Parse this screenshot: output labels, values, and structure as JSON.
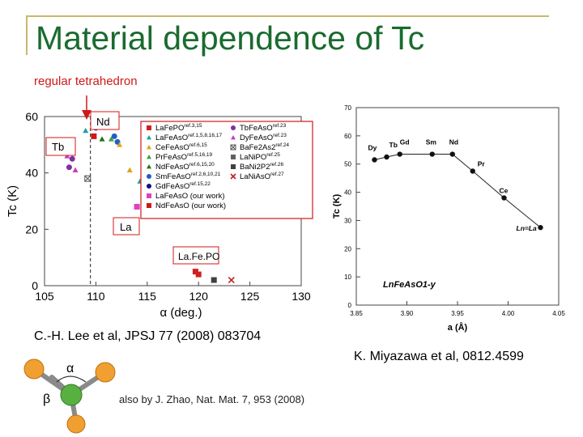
{
  "slide": {
    "title": "Material dependence of Tc",
    "subtitle": "regular tetrahedron",
    "ref_lee": "C.-H. Lee et al, JPSJ 77 (2008) 083704",
    "ref_miyazawa": "K. Miyazawa et al, 0812.4599",
    "ref_zhao": "also by J. Zhao, Nat. Mat. 7, 953 (2008)",
    "callouts": {
      "nd": "Nd",
      "tb": "Tb",
      "la": "La",
      "lafepo": "La.Fe.PO"
    },
    "colors": {
      "title": "#1a6b2f",
      "subtitle": "#d01818",
      "accent": "#d01818"
    }
  },
  "molecule": {
    "alpha": "α",
    "beta": "β"
  },
  "chart_data": [
    {
      "type": "scatter",
      "xlabel": "α (deg.)",
      "ylabel": "Tc (K)",
      "xlim": [
        105,
        130
      ],
      "ylim": [
        0,
        60
      ],
      "xticks": [
        105,
        110,
        115,
        120,
        125,
        130
      ],
      "yticks": [
        0,
        20,
        40,
        60
      ],
      "reference_x": 109.47,
      "legend": [
        {
          "label": "LaFePO",
          "ref": "ref.3,15",
          "color": "#d02020",
          "marker": "square"
        },
        {
          "label": "LaFeAsO",
          "ref": "ref.1,5,8,16,17",
          "color": "#20a0a0",
          "marker": "triangle"
        },
        {
          "label": "CeFeAsO",
          "ref": "ref.6,15",
          "color": "#e0a020",
          "marker": "triangle"
        },
        {
          "label": "PrFeAsO",
          "ref": "ref.5,16,19",
          "color": "#40a040",
          "marker": "triangle"
        },
        {
          "label": "NdFeAsO",
          "ref": "ref.6,15,20",
          "color": "#207020",
          "marker": "triangle"
        },
        {
          "label": "SmFeAsO",
          "ref": "ref.2,6,10,21",
          "color": "#2060c0",
          "marker": "circle"
        },
        {
          "label": "GdFeAsO",
          "ref": "ref.15,22",
          "color": "#101080",
          "marker": "circle"
        },
        {
          "label": "LaFeAsO (our work)",
          "ref": "",
          "color": "#e040c0",
          "marker": "square"
        },
        {
          "label": "NdFeAsO (our work)",
          "ref": "",
          "color": "#d01818",
          "marker": "square"
        },
        {
          "label": "TbFeAsO",
          "ref": "ref.23",
          "color": "#8030a0",
          "marker": "circle"
        },
        {
          "label": "DyFeAsO",
          "ref": "ref.23",
          "color": "#c040c0",
          "marker": "triangle"
        },
        {
          "label": "BaFe2As2",
          "ref": "ref.24",
          "color": "#555555",
          "marker": "x-square"
        },
        {
          "label": "LaNiPO",
          "ref": "ref.25",
          "color": "#606060",
          "marker": "square"
        },
        {
          "label": "BaNi2P2",
          "ref": "ref.26",
          "color": "#404040",
          "marker": "square"
        },
        {
          "label": "LaNiAsO",
          "ref": "ref.27",
          "color": "#c02020",
          "marker": "x"
        }
      ],
      "points": [
        {
          "x": 109.0,
          "y": 55,
          "color": "#20a0a0",
          "marker": "triangle"
        },
        {
          "x": 110.0,
          "y": 56,
          "color": "#101080",
          "marker": "circle"
        },
        {
          "x": 109.8,
          "y": 53,
          "color": "#d01818",
          "marker": "square"
        },
        {
          "x": 110.6,
          "y": 52,
          "color": "#207020",
          "marker": "triangle"
        },
        {
          "x": 111.5,
          "y": 52,
          "color": "#40a040",
          "marker": "triangle"
        },
        {
          "x": 111.8,
          "y": 53,
          "color": "#2060c0",
          "marker": "circle"
        },
        {
          "x": 112.1,
          "y": 51,
          "color": "#2060c0",
          "marker": "circle"
        },
        {
          "x": 112.3,
          "y": 50,
          "color": "#e0a020",
          "marker": "triangle"
        },
        {
          "x": 107.2,
          "y": 46,
          "color": "#c040c0",
          "marker": "triangle"
        },
        {
          "x": 107.7,
          "y": 45,
          "color": "#8030a0",
          "marker": "circle"
        },
        {
          "x": 107.4,
          "y": 42,
          "color": "#8030a0",
          "marker": "circle"
        },
        {
          "x": 108.0,
          "y": 41,
          "color": "#c040c0",
          "marker": "triangle"
        },
        {
          "x": 109.2,
          "y": 38,
          "color": "#555555",
          "marker": "x-square"
        },
        {
          "x": 113.3,
          "y": 41,
          "color": "#e0a020",
          "marker": "triangle"
        },
        {
          "x": 114.3,
          "y": 37,
          "color": "#20a0a0",
          "marker": "triangle"
        },
        {
          "x": 114.0,
          "y": 28,
          "color": "#e040c0",
          "marker": "square"
        },
        {
          "x": 114.9,
          "y": 26,
          "color": "#20a0a0",
          "marker": "triangle"
        },
        {
          "x": 119.7,
          "y": 5,
          "color": "#d02020",
          "marker": "square"
        },
        {
          "x": 120.0,
          "y": 4,
          "color": "#d02020",
          "marker": "square"
        },
        {
          "x": 121.5,
          "y": 2,
          "color": "#404040",
          "marker": "square"
        },
        {
          "x": 123.2,
          "y": 2,
          "color": "#c02020",
          "marker": "x"
        }
      ]
    },
    {
      "type": "line",
      "xlabel": "a (Å)",
      "ylabel": "Tc (K)",
      "xlim": [
        3.85,
        4.05
      ],
      "ylim": [
        0,
        70
      ],
      "xticks": [
        "3.85",
        "3.90",
        "3.95",
        "4.00",
        "4.05"
      ],
      "yticks": [
        0,
        10,
        20,
        30,
        40,
        50,
        60,
        70
      ],
      "series_label": "LnFeAsO1-y",
      "points": [
        {
          "label": "Dy",
          "x": 3.868,
          "y": 51.5
        },
        {
          "label": "Tb",
          "x": 3.88,
          "y": 52.5
        },
        {
          "label": "Gd",
          "x": 3.893,
          "y": 53.5
        },
        {
          "label": "Sm",
          "x": 3.925,
          "y": 53.5
        },
        {
          "label": "Nd",
          "x": 3.945,
          "y": 53.5
        },
        {
          "label": "Pr",
          "x": 3.965,
          "y": 47.5
        },
        {
          "label": "Ce",
          "x": 3.996,
          "y": 38
        },
        {
          "label": "Ln=La",
          "x": 4.032,
          "y": 27.5
        }
      ]
    }
  ]
}
